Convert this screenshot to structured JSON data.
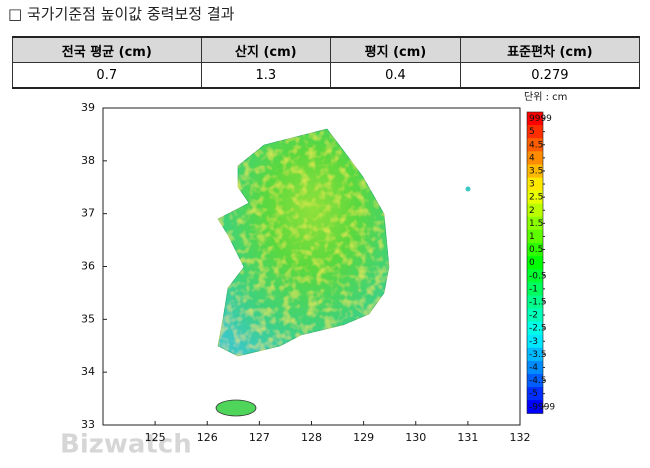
{
  "header": {
    "title": "□ 국가기준점 높이값 중력보정 결과"
  },
  "table": {
    "headers": [
      "전국 평균 (cm)",
      "산지 (cm)",
      "평지 (cm)",
      "표준편차 (cm)"
    ],
    "rows": [
      [
        0.7,
        1.3,
        0.4,
        0.279
      ]
    ]
  },
  "map": {
    "xlim": [
      124,
      132
    ],
    "ylim": [
      33,
      39
    ],
    "xticks": [
      125,
      126,
      127,
      128,
      129,
      130,
      131,
      132
    ],
    "yticks": [
      33,
      34,
      35,
      36,
      37,
      38,
      39
    ],
    "colorbar_label": "단위 : cm",
    "colorbar_ticks": [
      9999,
      5,
      4.5,
      4,
      3.5,
      3,
      2.5,
      2,
      1.5,
      1,
      0.5,
      0,
      -0.5,
      -1,
      -1.5,
      -2,
      -2.5,
      -3,
      -3.5,
      -4,
      -4.5,
      -5,
      -9999
    ]
  },
  "watermark": "Bizwatch"
}
